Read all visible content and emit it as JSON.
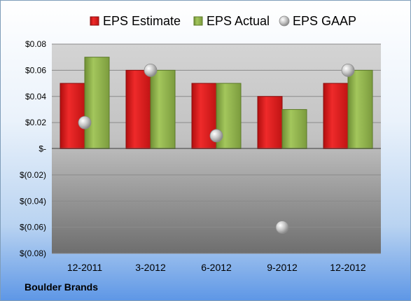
{
  "chart_data": {
    "type": "bar",
    "categories": [
      "12-2011",
      "3-2012",
      "6-2012",
      "9-2012",
      "12-2012"
    ],
    "series": [
      {
        "name": "EPS Estimate",
        "kind": "bar",
        "color": "#e01b1b",
        "values": [
          0.05,
          0.06,
          0.05,
          0.04,
          0.05
        ]
      },
      {
        "name": "EPS Actual",
        "kind": "bar",
        "color": "#8fb34c",
        "values": [
          0.07,
          0.06,
          0.05,
          0.03,
          0.06
        ]
      },
      {
        "name": "EPS GAAP",
        "kind": "marker",
        "color": "#b5b5b5",
        "values": [
          0.02,
          0.06,
          0.01,
          -0.06,
          0.06
        ]
      }
    ],
    "yticks": [
      {
        "value": 0.08,
        "label": "$0.08"
      },
      {
        "value": 0.06,
        "label": "$0.06"
      },
      {
        "value": 0.04,
        "label": "$0.04"
      },
      {
        "value": 0.02,
        "label": "$0.02"
      },
      {
        "value": 0,
        "label": "$-"
      },
      {
        "value": -0.02,
        "label": "$(0.02)"
      },
      {
        "value": -0.04,
        "label": "$(0.04)"
      },
      {
        "value": -0.06,
        "label": "$(0.06)"
      },
      {
        "value": -0.08,
        "label": "$(0.08)"
      }
    ],
    "ylim": [
      -0.08,
      0.08
    ],
    "grid": true,
    "legend_position": "top"
  },
  "footer": {
    "company": "Boulder Brands"
  }
}
